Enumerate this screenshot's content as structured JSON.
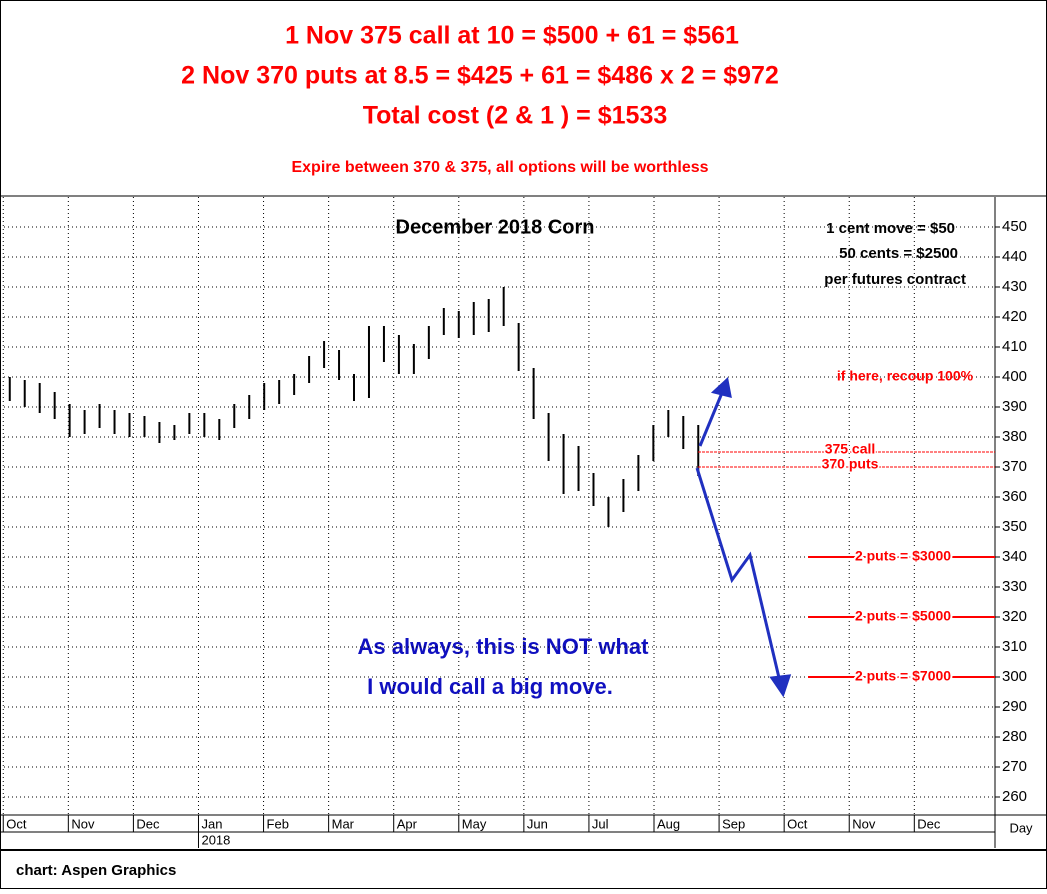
{
  "chart_data": {
    "type": "range-bar",
    "header": [
      "1 Nov 375 call at 10 = $500 + 61 = $561",
      "2 Nov 370 puts at 8.5 = $425 + 61 = $486 x 2 = $972",
      "Total cost (2 & 1 ) = $1533"
    ],
    "subheader": "Expire between 370 & 375, all options will be worthless",
    "title": "December 2018 Corn",
    "info": [
      "1 cent move = $50",
      "50 cents = $2500",
      "per futures contract"
    ],
    "x": [
      0.1,
      0.33,
      0.56,
      0.79,
      1.02,
      1.25,
      1.48,
      1.71,
      1.94,
      2.17,
      2.4,
      2.63,
      2.86,
      3.09,
      3.32,
      3.55,
      3.78,
      4.01,
      4.24,
      4.47,
      4.7,
      4.93,
      5.16,
      5.39,
      5.62,
      5.85,
      6.08,
      6.31,
      6.54,
      6.77,
      7.0,
      7.23,
      7.46,
      7.69,
      7.92,
      8.15,
      8.38,
      8.61,
      8.84,
      9.07,
      9.3,
      9.53,
      9.76,
      9.99,
      10.22,
      10.45,
      10.68
    ],
    "high": [
      400,
      399,
      398,
      395,
      391,
      389,
      391,
      389,
      388,
      387,
      385,
      384,
      388,
      388,
      386,
      391,
      394,
      398,
      399,
      401,
      407,
      412,
      409,
      401,
      417,
      417,
      414,
      411,
      417,
      423,
      422,
      425,
      426,
      430,
      418,
      403,
      388,
      381,
      377,
      368,
      360,
      366,
      374,
      384,
      389,
      387,
      384
    ],
    "low": [
      392,
      390,
      388,
      386,
      380,
      381,
      383,
      381,
      380,
      380,
      378,
      379,
      381,
      380,
      379,
      383,
      386,
      389,
      391,
      394,
      398,
      403,
      399,
      392,
      393,
      405,
      401,
      401,
      406,
      414,
      413,
      414,
      415,
      417,
      402,
      386,
      372,
      361,
      362,
      357,
      350,
      355,
      362,
      372,
      380,
      376,
      367
    ],
    "color": "#000000",
    "xlim": [
      -0.05,
      15.24
    ],
    "xticks": [
      {
        "value": 0,
        "label": "Oct"
      },
      {
        "value": 1,
        "label": "Nov"
      },
      {
        "value": 2,
        "label": "Dec"
      },
      {
        "value": 3,
        "label": "Jan"
      },
      {
        "value": 4,
        "label": "Feb"
      },
      {
        "value": 5,
        "label": "Mar"
      },
      {
        "value": 6,
        "label": "Apr"
      },
      {
        "value": 7,
        "label": "May"
      },
      {
        "value": 8,
        "label": "Jun"
      },
      {
        "value": 9,
        "label": "Jul"
      },
      {
        "value": 10,
        "label": "Aug"
      },
      {
        "value": 11,
        "label": "Sep"
      },
      {
        "value": 12,
        "label": "Oct"
      },
      {
        "value": 13,
        "label": "Nov"
      },
      {
        "value": 14,
        "label": "Dec"
      }
    ],
    "year_label": "2018",
    "x_unit_label": "Day",
    "ylim": [
      254,
      460
    ],
    "yticks": [
      260,
      270,
      280,
      290,
      300,
      310,
      320,
      330,
      340,
      350,
      360,
      370,
      380,
      390,
      400,
      410,
      420,
      430,
      440,
      450
    ],
    "grid": true,
    "levels": [
      {
        "text": "375 call",
        "value": 375
      },
      {
        "text": "370 puts",
        "value": 370
      }
    ],
    "targets": [
      {
        "text": "2 puts = $3000",
        "value": 340
      },
      {
        "text": "2 puts = $5000",
        "value": 320
      },
      {
        "text": "2 puts = $7000",
        "value": 300
      }
    ],
    "recoup": {
      "text": "if here, recoup 100%",
      "value": 400
    },
    "note": [
      "As always, this is NOT what",
      "I would call a big move."
    ],
    "source": "chart: Aspen Graphics"
  }
}
